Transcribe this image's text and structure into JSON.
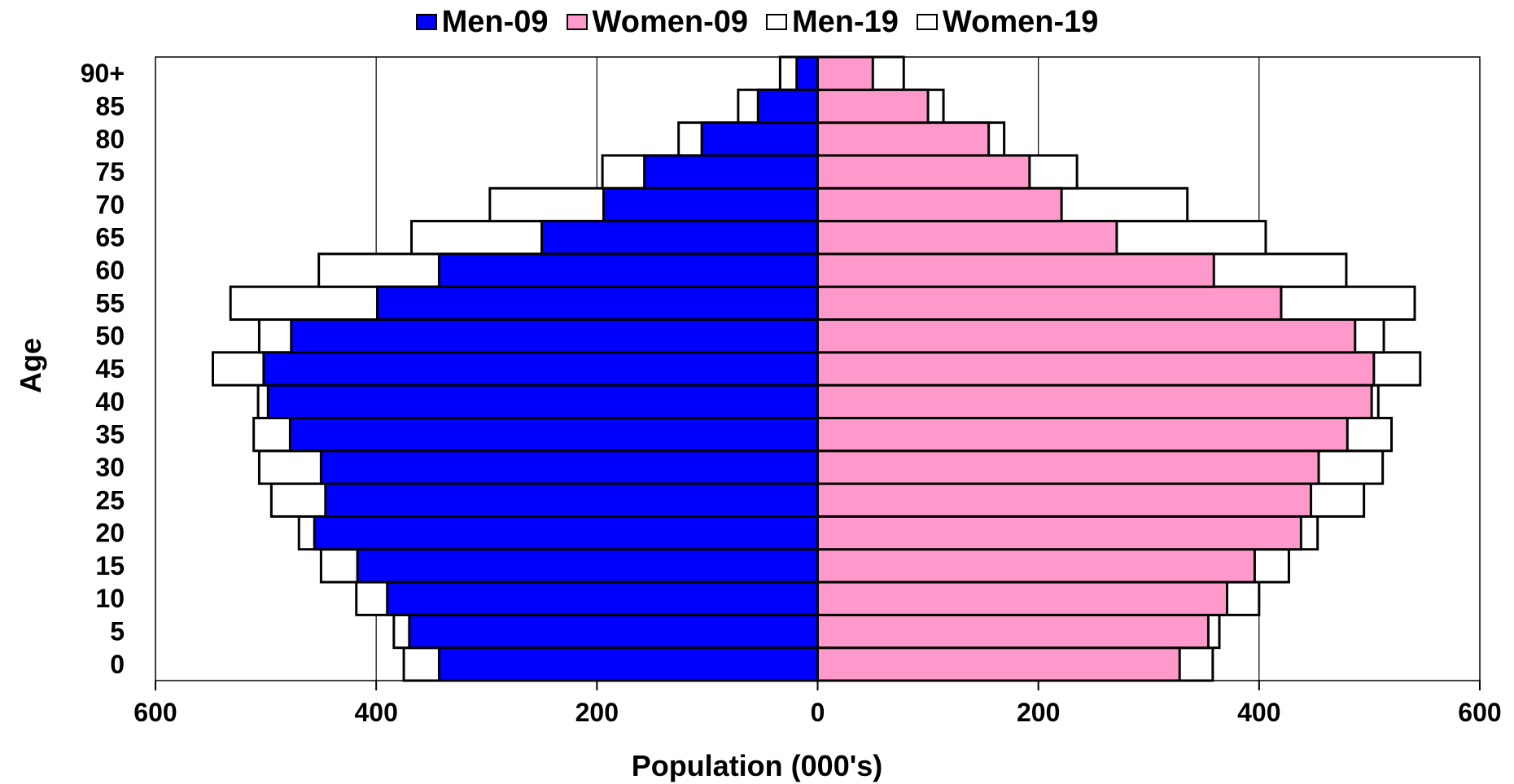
{
  "chart_data": {
    "type": "bar",
    "orientation": "horizontal-pyramid",
    "categories": [
      "0",
      "5",
      "10",
      "15",
      "20",
      "25",
      "30",
      "35",
      "40",
      "45",
      "50",
      "55",
      "60",
      "65",
      "70",
      "75",
      "80",
      "85",
      "90+"
    ],
    "series": [
      {
        "name": "Men-09",
        "side": "left",
        "style": "filled",
        "color": "#0000ff",
        "values": [
          343,
          370,
          390,
          417,
          456,
          446,
          450,
          478,
          498,
          502,
          477,
          399,
          343,
          250,
          194,
          157,
          105,
          54,
          19
        ]
      },
      {
        "name": "Women-09",
        "side": "right",
        "style": "filled",
        "color": "#ff99cc",
        "values": [
          328,
          354,
          371,
          396,
          438,
          447,
          454,
          480,
          502,
          504,
          487,
          420,
          359,
          271,
          221,
          192,
          155,
          100,
          50
        ]
      },
      {
        "name": "Men-19",
        "side": "left",
        "style": "outline",
        "color": "#ffffff",
        "values": [
          375,
          384,
          418,
          450,
          470,
          495,
          506,
          511,
          507,
          548,
          506,
          532,
          452,
          368,
          297,
          195,
          126,
          72,
          34
        ]
      },
      {
        "name": "Women-19",
        "side": "right",
        "style": "outline",
        "color": "#ffffff",
        "values": [
          358,
          364,
          400,
          427,
          453,
          495,
          512,
          520,
          508,
          546,
          513,
          541,
          479,
          406,
          335,
          235,
          169,
          114,
          78
        ]
      }
    ],
    "xlabel": "Population (000's)",
    "ylabel": "Age",
    "xlim": [
      -600,
      600
    ],
    "xticks": [
      -600,
      -400,
      -200,
      0,
      200,
      400,
      600
    ],
    "xtick_labels": [
      "600",
      "400",
      "200",
      "0",
      "200",
      "400",
      "600"
    ],
    "grid": "vertical",
    "legend_position": "top-center"
  }
}
